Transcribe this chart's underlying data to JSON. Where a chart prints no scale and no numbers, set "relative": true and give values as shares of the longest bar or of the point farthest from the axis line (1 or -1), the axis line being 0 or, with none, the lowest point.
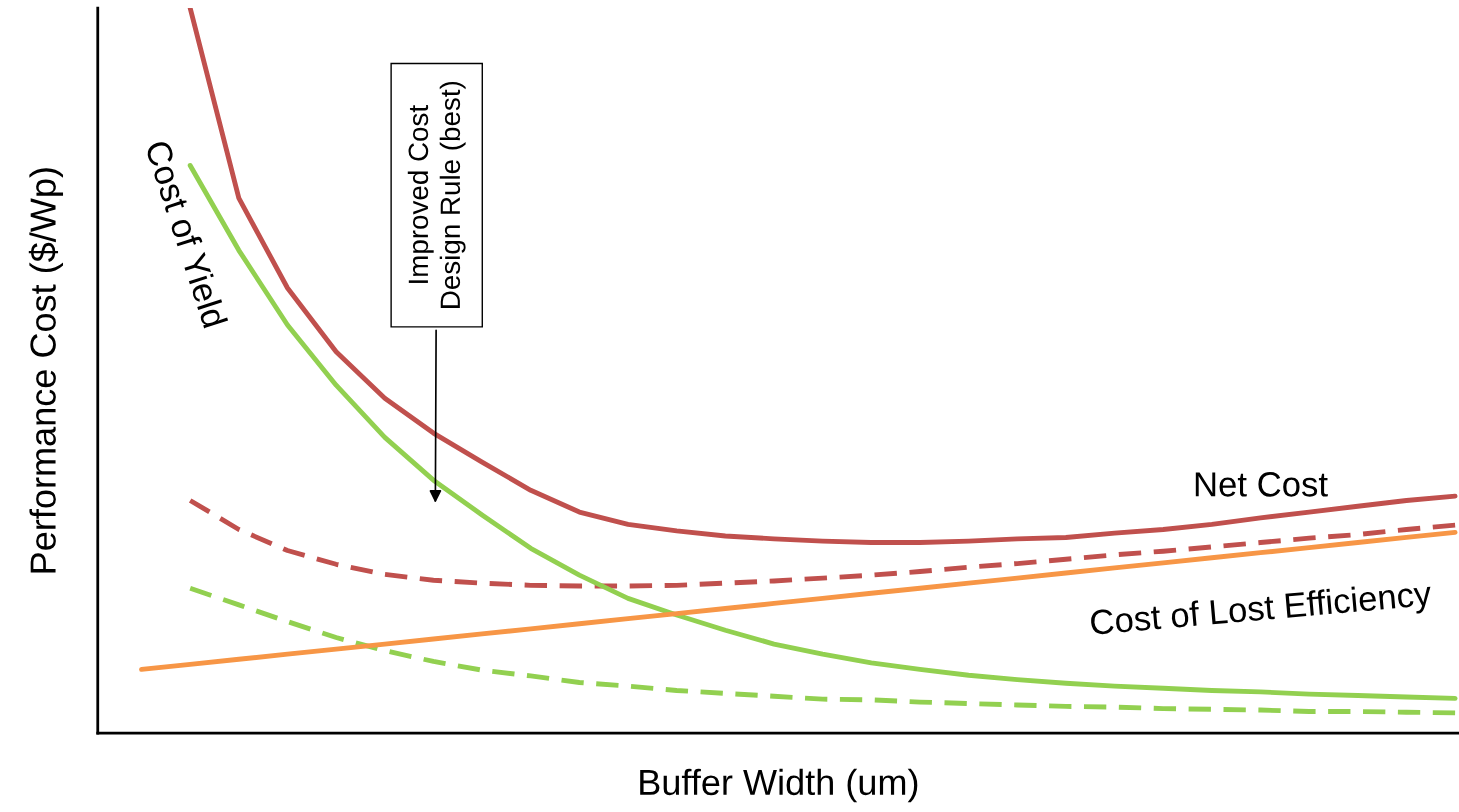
{
  "chart_data": {
    "type": "line",
    "relative": true,
    "xlabel": "Buffer Width (um)",
    "ylabel": "Performance Cost ($/Wp)",
    "categories": [
      null,
      null,
      null,
      null,
      null,
      null,
      null,
      null,
      null,
      null,
      null,
      null,
      null,
      null,
      null,
      null,
      null,
      null,
      null,
      null,
      null,
      null,
      null,
      null,
      null,
      null,
      null,
      null
    ],
    "grid": false,
    "legend": false,
    "series": [
      {
        "name": "Net Cost",
        "color": "#c0504d",
        "line_style": "solid",
        "values": [
          null,
          1.0,
          0.738,
          0.614,
          0.526,
          0.462,
          0.414,
          0.374,
          0.335,
          0.305,
          0.288,
          0.279,
          0.272,
          0.268,
          0.265,
          0.263,
          0.263,
          0.265,
          0.268,
          0.27,
          0.276,
          0.281,
          0.288,
          0.297,
          0.305,
          0.313,
          0.321,
          0.327
        ]
      },
      {
        "color": "#c0504d",
        "line_style": "dashed",
        "values": [
          null,
          0.321,
          0.281,
          0.252,
          0.233,
          0.219,
          0.211,
          0.207,
          0.204,
          0.203,
          0.203,
          0.204,
          0.207,
          0.21,
          0.214,
          0.218,
          0.223,
          0.229,
          0.234,
          0.24,
          0.246,
          0.251,
          0.257,
          0.263,
          0.269,
          0.274,
          0.281,
          0.287
        ]
      },
      {
        "name": "Cost of Yield",
        "color": "#92d050",
        "line_style": "solid",
        "values": [
          null,
          0.783,
          0.666,
          0.563,
          0.48,
          0.408,
          0.349,
          0.301,
          0.255,
          0.218,
          0.186,
          0.163,
          0.142,
          0.123,
          0.109,
          0.097,
          0.088,
          0.08,
          0.074,
          0.069,
          0.065,
          0.062,
          0.059,
          0.057,
          0.054,
          0.052,
          0.05,
          0.048
        ]
      },
      {
        "color": "#92d050",
        "line_style": "dashed",
        "values": [
          null,
          0.2,
          0.177,
          0.154,
          0.132,
          0.114,
          0.099,
          0.087,
          0.079,
          0.07,
          0.065,
          0.059,
          0.055,
          0.051,
          0.047,
          0.046,
          0.043,
          0.041,
          0.039,
          0.037,
          0.036,
          0.034,
          0.033,
          0.032,
          0.03,
          0.03,
          0.029,
          0.028
        ]
      },
      {
        "name": "Cost of Lost Efficiency",
        "color": "#f79646",
        "line_style": "solid",
        "values": [
          0.088,
          0.095,
          0.102,
          0.109,
          0.116,
          0.123,
          0.13,
          0.137,
          0.144,
          0.151,
          0.158,
          0.165,
          0.172,
          0.179,
          0.186,
          0.193,
          0.2,
          0.207,
          0.214,
          0.221,
          0.228,
          0.235,
          0.242,
          0.249,
          0.256,
          0.263,
          0.27,
          0.277
        ]
      }
    ],
    "annotations": [
      "Improved Cost\nDesign Rule (best)"
    ]
  }
}
